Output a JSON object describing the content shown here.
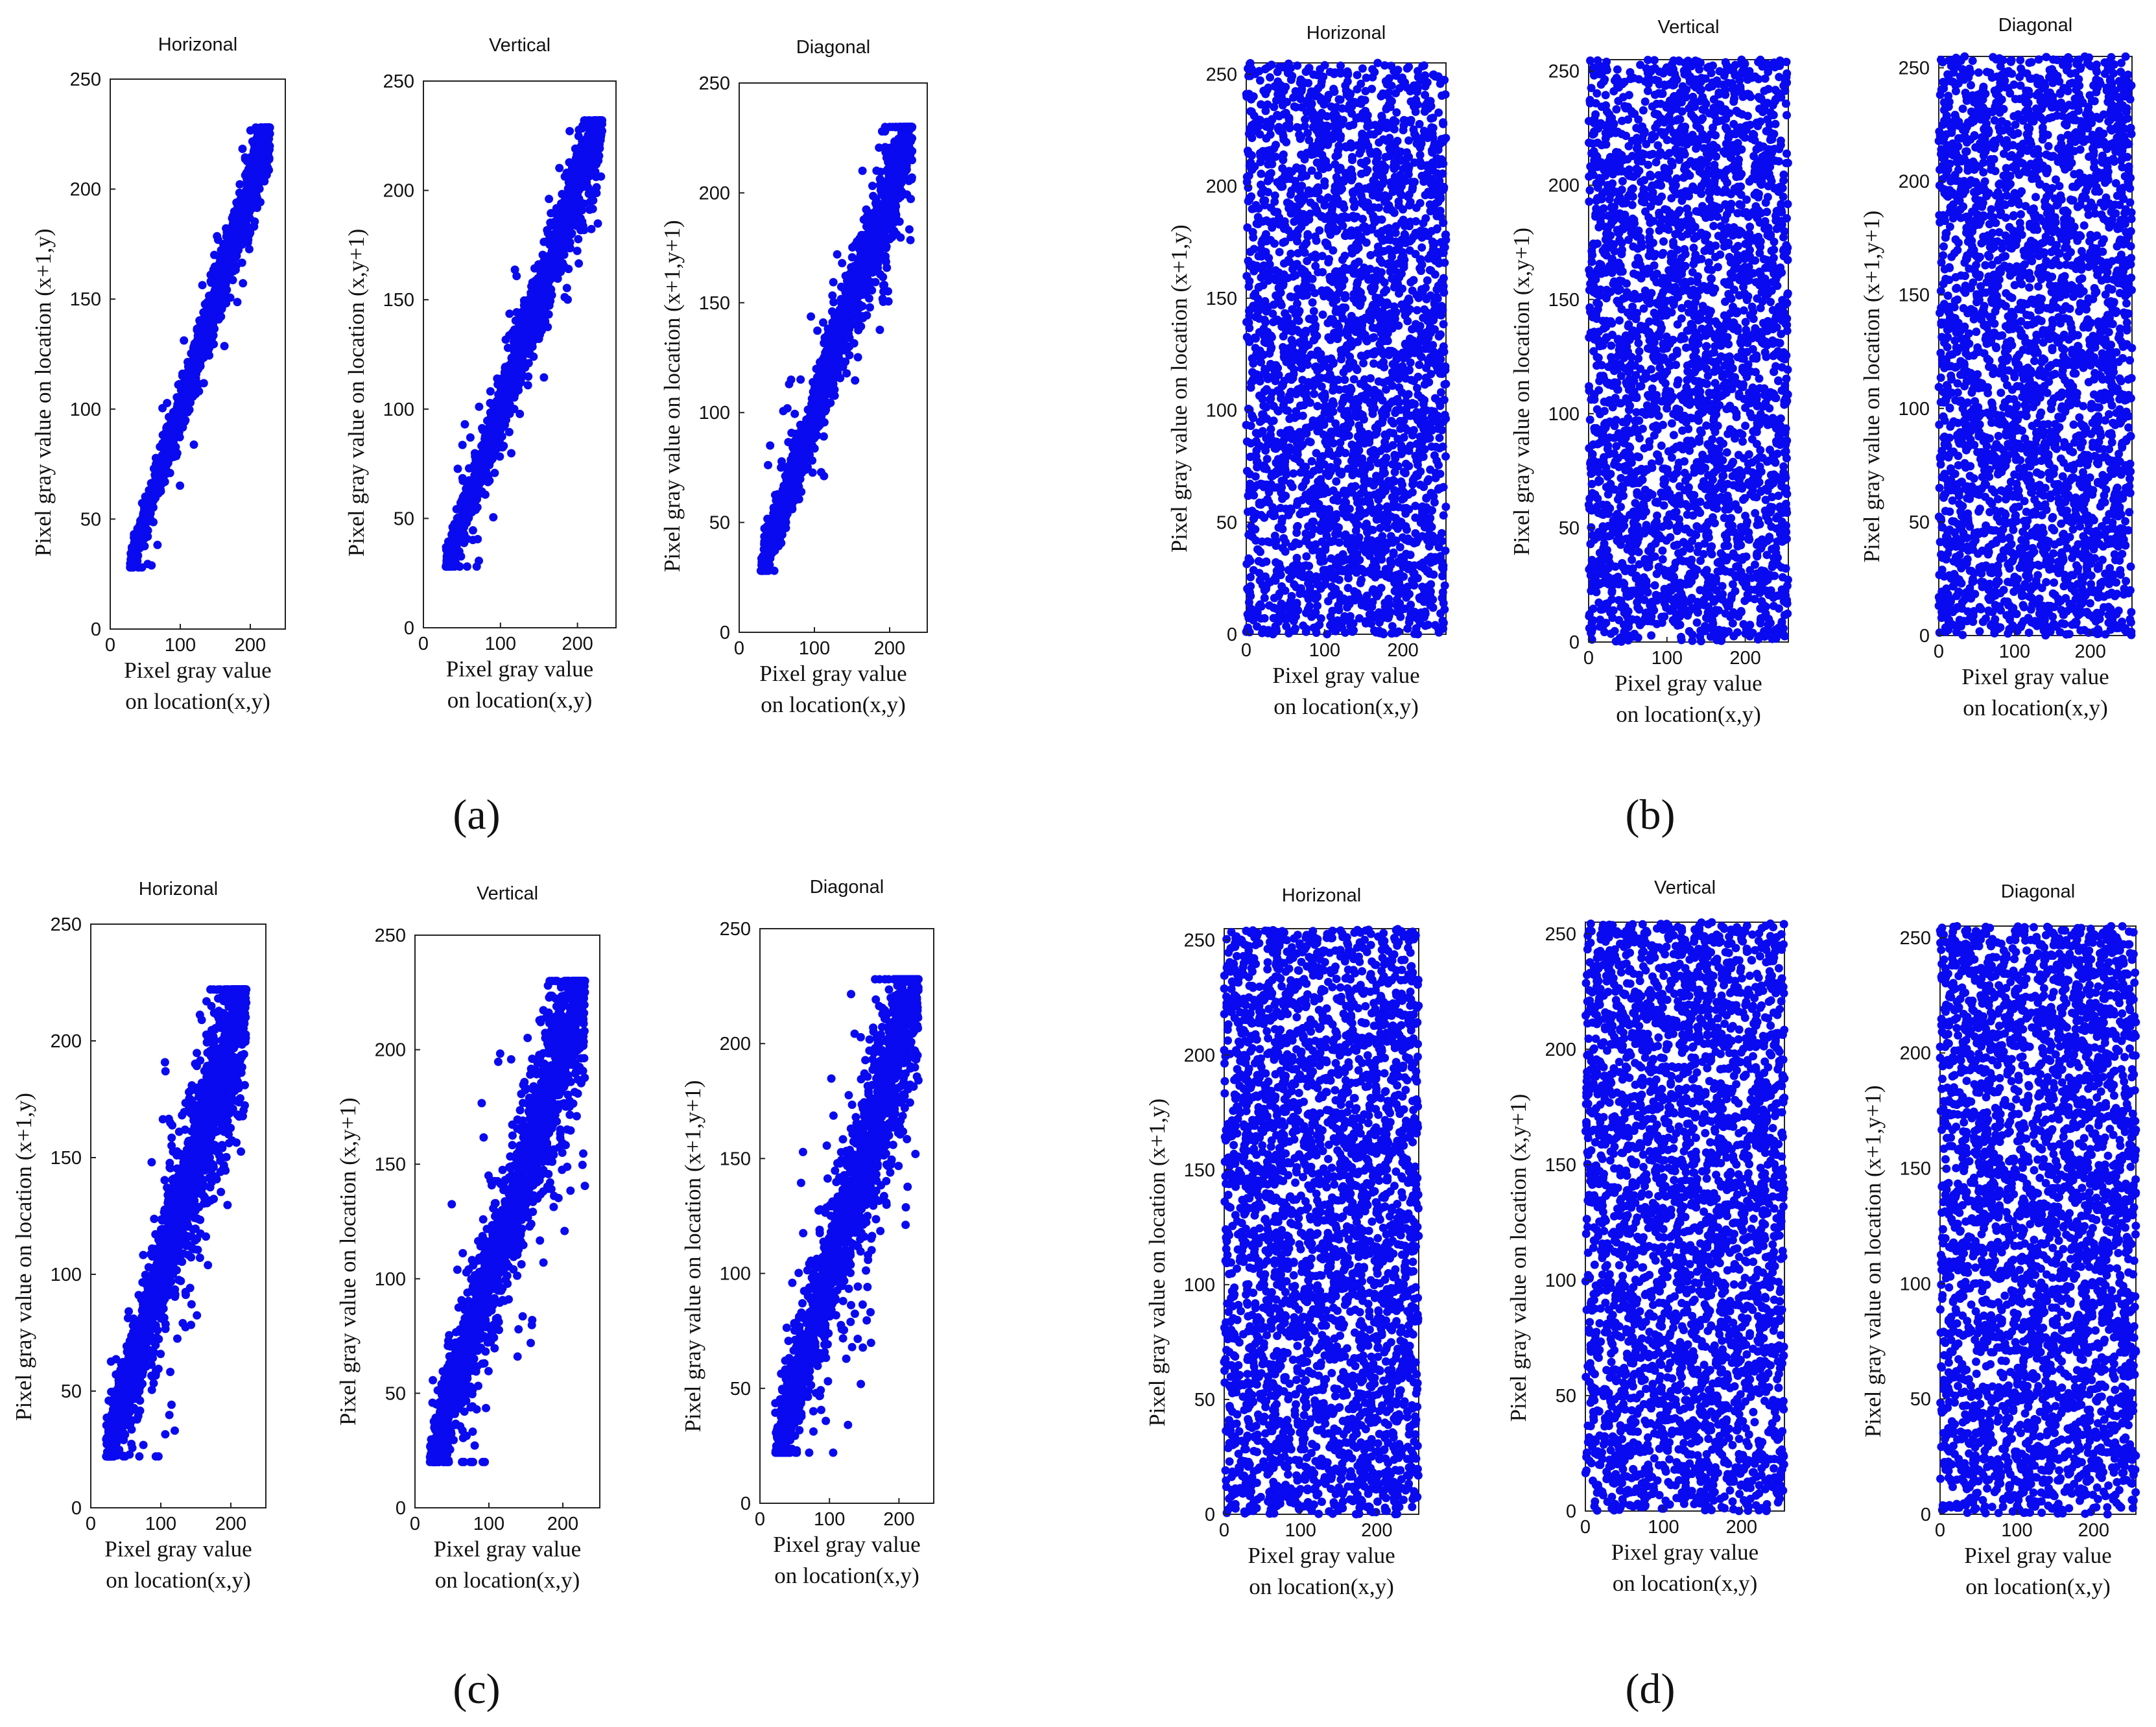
{
  "figure": {
    "marker_color": "#0a0af0",
    "xlabel_line1": "Pixel  gray  value",
    "xlabel_line2": "on location(x,y)",
    "panel_labels": [
      "(a)",
      "(b)",
      "(c)",
      "(d)"
    ]
  },
  "chart_data": [
    {
      "panel": "a",
      "index": 0,
      "type": "scatter",
      "title": "Horizonal",
      "ylabel": "Pixel gray value on location (x+1,y)",
      "xlabel": "Pixel  gray  value on location(x,y)",
      "distribution": "correlated",
      "xlim": [
        0,
        250
      ],
      "ylim": [
        0,
        250
      ],
      "xticks": [
        0,
        100,
        200
      ],
      "yticks": [
        0,
        50,
        100,
        150,
        200,
        250
      ],
      "value_range": [
        28,
        228
      ],
      "spread": 12,
      "n_points": 1700,
      "seed": 11
    },
    {
      "panel": "a",
      "index": 1,
      "type": "scatter",
      "title": "Vertical",
      "ylabel": "Pixel gray value on location (x,y+1)",
      "xlabel": "Pixel  gray  value on location(x,y)",
      "distribution": "correlated",
      "xlim": [
        0,
        250
      ],
      "ylim": [
        0,
        250
      ],
      "xticks": [
        0,
        100,
        200
      ],
      "yticks": [
        0,
        50,
        100,
        150,
        200,
        250
      ],
      "value_range": [
        28,
        232
      ],
      "spread": 15,
      "n_points": 1700,
      "seed": 12
    },
    {
      "panel": "a",
      "index": 2,
      "type": "scatter",
      "title": "Diagonal",
      "ylabel": "Pixel gray value on location (x+1,y+1)",
      "xlabel": "Pixel  gray  value on location(x,y)",
      "distribution": "correlated",
      "xlim": [
        0,
        250
      ],
      "ylim": [
        0,
        250
      ],
      "xticks": [
        0,
        100,
        200
      ],
      "yticks": [
        0,
        50,
        100,
        150,
        200,
        250
      ],
      "value_range": [
        28,
        230
      ],
      "spread": 17,
      "n_points": 1700,
      "seed": 13
    },
    {
      "panel": "b",
      "index": 0,
      "type": "scatter",
      "title": "Horizonal",
      "ylabel": "Pixel gray value on location (x+1,y)",
      "xlabel": "Pixel  gray  value on location(x,y)",
      "distribution": "uniform",
      "xlim": [
        0,
        255
      ],
      "ylim": [
        0,
        255
      ],
      "xticks": [
        0,
        100,
        200
      ],
      "yticks": [
        0,
        50,
        100,
        150,
        200,
        250
      ],
      "value_range": [
        0,
        255
      ],
      "spread": 0,
      "n_points": 3000,
      "seed": 21
    },
    {
      "panel": "b",
      "index": 1,
      "type": "scatter",
      "title": "Vertical",
      "ylabel": "Pixel gray value on location (x,y+1)",
      "xlabel": "Pixel  gray  value on location(x,y)",
      "distribution": "uniform",
      "xlim": [
        0,
        255
      ],
      "ylim": [
        0,
        255
      ],
      "xticks": [
        0,
        100,
        200
      ],
      "yticks": [
        0,
        50,
        100,
        150,
        200,
        250
      ],
      "value_range": [
        0,
        255
      ],
      "spread": 0,
      "n_points": 3000,
      "seed": 22
    },
    {
      "panel": "b",
      "index": 2,
      "type": "scatter",
      "title": "Diagonal",
      "ylabel": "Pixel gray value on location (x+1,y+1)",
      "xlabel": "Pixel  gray  value on location(x,y)",
      "distribution": "uniform",
      "xlim": [
        0,
        255
      ],
      "ylim": [
        0,
        255
      ],
      "xticks": [
        0,
        100,
        200
      ],
      "yticks": [
        0,
        50,
        100,
        150,
        200,
        250
      ],
      "value_range": [
        0,
        255
      ],
      "spread": 0,
      "n_points": 3000,
      "seed": 23
    },
    {
      "panel": "c",
      "index": 0,
      "type": "scatter",
      "title": "Horizonal",
      "ylabel": "Pixel gray value on location (x+1,y)",
      "xlabel": "Pixel  gray  value on location(x,y)",
      "distribution": "correlated",
      "xlim": [
        0,
        250
      ],
      "ylim": [
        0,
        250
      ],
      "xticks": [
        0,
        100,
        200
      ],
      "yticks": [
        0,
        50,
        100,
        150,
        200,
        250
      ],
      "value_range": [
        22,
        222
      ],
      "spread": 30,
      "n_points": 1800,
      "seed": 31
    },
    {
      "panel": "c",
      "index": 1,
      "type": "scatter",
      "title": "Vertical",
      "ylabel": "Pixel gray value on location (x,y+1)",
      "xlabel": "Pixel  gray  value on location(x,y)",
      "distribution": "correlated",
      "xlim": [
        0,
        250
      ],
      "ylim": [
        0,
        250
      ],
      "xticks": [
        0,
        100,
        200
      ],
      "yticks": [
        0,
        50,
        100,
        150,
        200,
        250
      ],
      "value_range": [
        20,
        230
      ],
      "spread": 30,
      "n_points": 1800,
      "seed": 32
    },
    {
      "panel": "c",
      "index": 2,
      "type": "scatter",
      "title": "Diagonal",
      "ylabel": "Pixel gray value on location (x+1,y+1)",
      "xlabel": "Pixel  gray  value on location(x,y)",
      "distribution": "correlated",
      "xlim": [
        0,
        250
      ],
      "ylim": [
        0,
        250
      ],
      "xticks": [
        0,
        100,
        200
      ],
      "yticks": [
        0,
        50,
        100,
        150,
        200,
        250
      ],
      "value_range": [
        22,
        228
      ],
      "spread": 32,
      "n_points": 1800,
      "seed": 33
    },
    {
      "panel": "d",
      "index": 0,
      "type": "scatter",
      "title": "Horizonal",
      "ylabel": "Pixel gray value on location (x+1,y)",
      "xlabel": "Pixel  gray  value on location(x,y)",
      "distribution": "uniform",
      "xlim": [
        0,
        255
      ],
      "ylim": [
        0,
        255
      ],
      "xticks": [
        0,
        100,
        200
      ],
      "yticks": [
        0,
        50,
        100,
        150,
        200,
        250
      ],
      "value_range": [
        0,
        255
      ],
      "spread": 0,
      "n_points": 3000,
      "seed": 41
    },
    {
      "panel": "d",
      "index": 1,
      "type": "scatter",
      "title": "Vertical",
      "ylabel": "Pixel gray value on location (x,y+1)",
      "xlabel": "Pixel  gray  value on location(x,y)",
      "distribution": "uniform",
      "xlim": [
        0,
        255
      ],
      "ylim": [
        0,
        255
      ],
      "xticks": [
        0,
        100,
        200
      ],
      "yticks": [
        0,
        50,
        100,
        150,
        200,
        250
      ],
      "value_range": [
        0,
        255
      ],
      "spread": 0,
      "n_points": 3000,
      "seed": 42
    },
    {
      "panel": "d",
      "index": 2,
      "type": "scatter",
      "title": "Diagonal",
      "ylabel": "Pixel gray value on location (x+1,y+1)",
      "xlabel": "Pixel  gray  value on location(x,y)",
      "distribution": "uniform",
      "xlim": [
        0,
        255
      ],
      "ylim": [
        0,
        255
      ],
      "xticks": [
        0,
        100,
        200
      ],
      "yticks": [
        0,
        50,
        100,
        150,
        200,
        250
      ],
      "value_range": [
        0,
        255
      ],
      "spread": 0,
      "n_points": 3000,
      "seed": 43
    }
  ]
}
